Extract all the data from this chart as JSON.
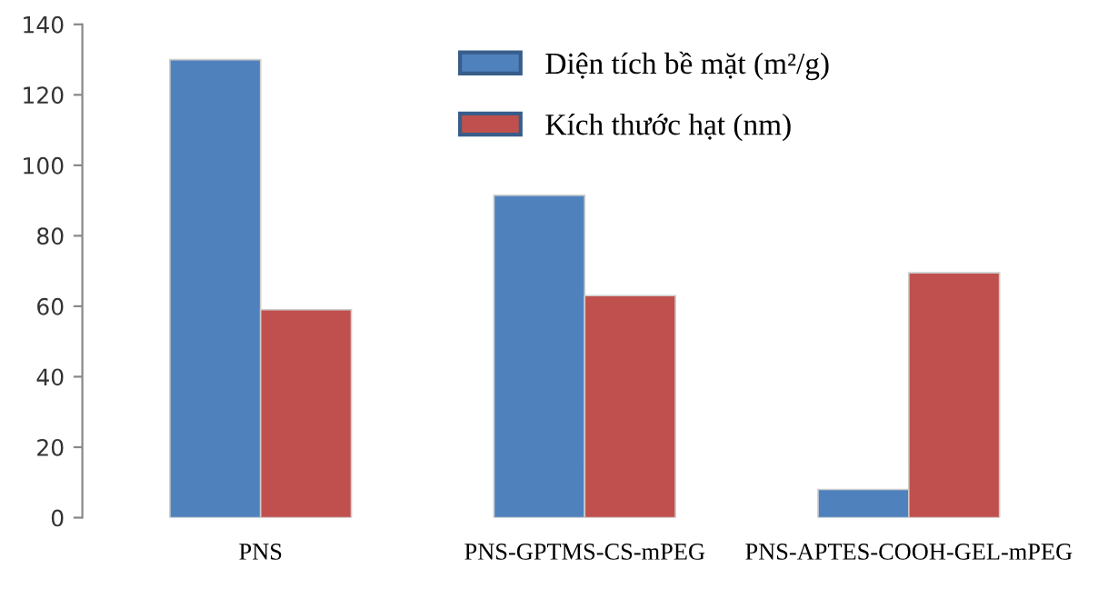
{
  "chart_data": {
    "type": "bar",
    "categories": [
      "PNS",
      "PNS-GPTMS-CS-mPEG",
      "PNS-APTES-COOH-GEL-mPEG"
    ],
    "series": [
      {
        "name": "Diện tích bề mặt (m²/g)",
        "color": "#4f81bd",
        "values": [
          130,
          91.5,
          8
        ]
      },
      {
        "name": "Kích thước hạt (nm)",
        "color": "#c0504d",
        "values": [
          59,
          63,
          69.5
        ]
      }
    ],
    "ylim": [
      0,
      140
    ],
    "yticks": [
      0,
      20,
      40,
      60,
      80,
      100,
      120,
      140
    ],
    "grid": false,
    "legend": "top"
  }
}
